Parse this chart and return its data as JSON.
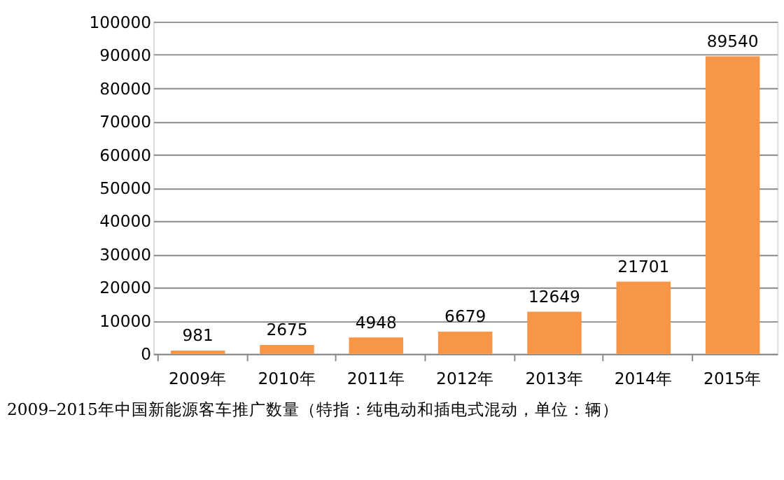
{
  "chart_data": {
    "type": "bar",
    "categories": [
      "2009年",
      "2010年",
      "2011年",
      "2012年",
      "2013年",
      "2014年",
      "2015年"
    ],
    "values": [
      981,
      2675,
      4948,
      6679,
      12649,
      21701,
      89540
    ],
    "color": "#f79646",
    "ylim": [
      0,
      100000
    ],
    "yticks": [
      0,
      10000,
      20000,
      30000,
      40000,
      50000,
      60000,
      70000,
      80000,
      90000,
      100000
    ],
    "grid": "y",
    "data_labels": true,
    "annotations": [
      "2009–2015年中国新能源客车推广数量（特指：纯电动和插电式混动，单位：辆）"
    ]
  }
}
